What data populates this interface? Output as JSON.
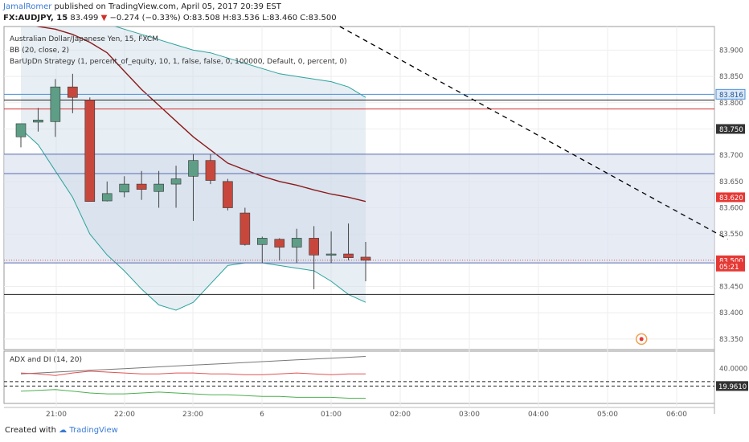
{
  "header": {
    "author": "JamalRomer",
    "published": "published on TradingView.com, April 05, 2017 20:39 EST",
    "symbol": "FX:AUDJPY, 15",
    "last": "83.499",
    "change_arrow": "▼",
    "change": "−0.274 (−0.33%)",
    "ohlc": {
      "o": "O:83.508",
      "h": "H:83.536",
      "l": "L:83.460",
      "c": "C:83.500"
    }
  },
  "legend": {
    "title": "Australian Dollar/Japanese Yen, 15, FXCM",
    "bb": "BB (20, close, 2)",
    "strategy": "BarUpDn Strategy (1, percent_of_equity, 10, 1, false, false, 0, 100000, Default, 0, percent, 0)",
    "adx": "ADX and DI (14, 20)"
  },
  "footer": {
    "created_with": "Created with",
    "brand": "TradingView"
  },
  "colors": {
    "up": "#5e9e86",
    "down": "#c8473c",
    "bb_fill": "#c9d9e6",
    "bb_band": "#2aa39b",
    "bb_basis": "#8b1a1a",
    "strategy_band": "#5b6cb0",
    "trend": "#000000",
    "adx": "#777777",
    "di_plus": "#4caf50",
    "di_minus": "#e05252",
    "price_tag": "#e53935",
    "dark_tag": "#333333",
    "blue_line": "#4a90d9",
    "red_line": "#d32f2f"
  },
  "chart_data": {
    "type": "candlestick",
    "x_ticks": [
      "21:00",
      "22:00",
      "23:00",
      "6",
      "01:00",
      "02:00",
      "03:00",
      "04:00",
      "05:00",
      "06:00"
    ],
    "y_ticks": [
      "83.900",
      "83.850",
      "83.800",
      "83.750",
      "83.700",
      "83.650",
      "83.600",
      "83.550",
      "83.500",
      "83.450",
      "83.400",
      "83.350"
    ],
    "ylim": [
      83.33,
      83.945
    ],
    "candles": [
      {
        "o": 83.735,
        "h": 83.76,
        "l": 83.715,
        "c": 83.76
      },
      {
        "o": 83.763,
        "h": 83.79,
        "l": 83.745,
        "c": 83.767
      },
      {
        "o": 83.764,
        "h": 83.845,
        "l": 83.735,
        "c": 83.83
      },
      {
        "o": 83.83,
        "h": 83.855,
        "l": 83.78,
        "c": 83.81
      },
      {
        "o": 83.805,
        "h": 83.81,
        "l": 83.612,
        "c": 83.612
      },
      {
        "o": 83.613,
        "h": 83.65,
        "l": 83.612,
        "c": 83.627
      },
      {
        "o": 83.63,
        "h": 83.66,
        "l": 83.62,
        "c": 83.645
      },
      {
        "o": 83.645,
        "h": 83.67,
        "l": 83.615,
        "c": 83.635
      },
      {
        "o": 83.631,
        "h": 83.67,
        "l": 83.6,
        "c": 83.645
      },
      {
        "o": 83.645,
        "h": 83.68,
        "l": 83.6,
        "c": 83.655
      },
      {
        "o": 83.66,
        "h": 83.702,
        "l": 83.575,
        "c": 83.69
      },
      {
        "o": 83.69,
        "h": 83.702,
        "l": 83.645,
        "c": 83.652
      },
      {
        "o": 83.65,
        "h": 83.655,
        "l": 83.595,
        "c": 83.6
      },
      {
        "o": 83.59,
        "h": 83.6,
        "l": 83.528,
        "c": 83.53
      },
      {
        "o": 83.53,
        "h": 83.545,
        "l": 83.495,
        "c": 83.542
      },
      {
        "o": 83.54,
        "h": 83.542,
        "l": 83.5,
        "c": 83.525
      },
      {
        "o": 83.525,
        "h": 83.56,
        "l": 83.495,
        "c": 83.542
      },
      {
        "o": 83.542,
        "h": 83.565,
        "l": 83.445,
        "c": 83.51
      },
      {
        "o": 83.51,
        "h": 83.555,
        "l": 83.495,
        "c": 83.512
      },
      {
        "o": 83.512,
        "h": 83.57,
        "l": 83.5,
        "c": 83.505
      },
      {
        "o": 83.506,
        "h": 83.535,
        "l": 83.46,
        "c": 83.5
      }
    ],
    "bb": {
      "upper": [
        84.02,
        84.01,
        84.0,
        83.98,
        83.96,
        83.95,
        83.94,
        83.93,
        83.92,
        83.91,
        83.9,
        83.895,
        83.885,
        83.875,
        83.865,
        83.855,
        83.85,
        83.845,
        83.84,
        83.83,
        83.81
      ],
      "basis": [
        83.955,
        83.945,
        83.94,
        83.93,
        83.915,
        83.895,
        83.86,
        83.825,
        83.795,
        83.765,
        83.735,
        83.71,
        83.685,
        83.672,
        83.66,
        83.65,
        83.643,
        83.634,
        83.626,
        83.62,
        83.612
      ],
      "lower": [
        83.75,
        83.72,
        83.67,
        83.62,
        83.55,
        83.51,
        83.48,
        83.445,
        83.415,
        83.405,
        83.42,
        83.455,
        83.49,
        83.495,
        83.495,
        83.49,
        83.485,
        83.48,
        83.46,
        83.435,
        83.42
      ]
    },
    "strategy_levels": [
      83.702,
      83.665,
      83.495
    ],
    "horizontal_levels": [
      83.816,
      83.805,
      83.788,
      83.435
    ],
    "trend_line": [
      {
        "x_index": 18.5,
        "y": 83.945
      },
      {
        "x_index": 41.0,
        "y": 83.54
      }
    ],
    "marker": {
      "x_index": 36.0,
      "y": 83.35
    },
    "price_labels": [
      {
        "text": "83.816",
        "y": 83.816,
        "style": "blue"
      },
      {
        "text": "83.750",
        "y": 83.75,
        "style": "dark"
      },
      {
        "text": "83.620",
        "y": 83.62,
        "style": "red"
      },
      {
        "text": "83.500",
        "y": 83.5,
        "style": "red"
      },
      {
        "text": "05:21",
        "y": 83.488,
        "style": "red"
      }
    ],
    "adx": {
      "y_ticks": [
        "40.0000"
      ],
      "label": "19.9610",
      "ylim": [
        0,
        60
      ],
      "adx": [
        34,
        35,
        36,
        37,
        38,
        39,
        40,
        41,
        42,
        43,
        44,
        45,
        46,
        47,
        48,
        49,
        50,
        51,
        52,
        53,
        54
      ],
      "di_minus": [
        35,
        34,
        32,
        35,
        37,
        36,
        35,
        34,
        34,
        35,
        35,
        34,
        34,
        33,
        33,
        34,
        35,
        34,
        33,
        34,
        34
      ],
      "di_plus": [
        14,
        15,
        16,
        14,
        12,
        11,
        11,
        12,
        13,
        12,
        11,
        10,
        10,
        9,
        8,
        8,
        7,
        7,
        7,
        6,
        6
      ],
      "levels": [
        25,
        20
      ]
    }
  }
}
